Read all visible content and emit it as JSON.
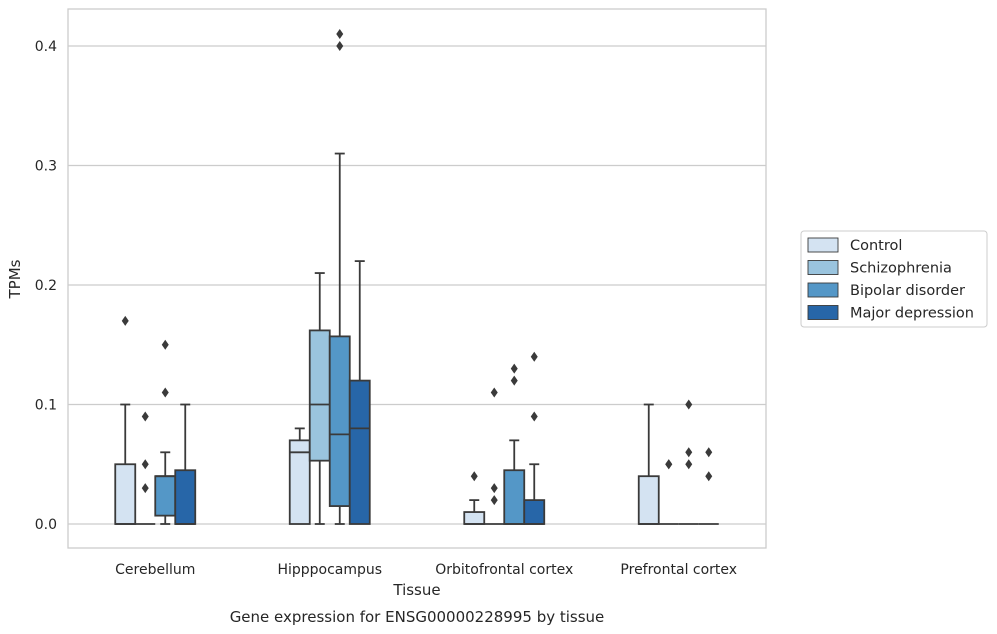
{
  "figure": {
    "caption": "Gene expression for ENSG00000228995 by tissue"
  },
  "chart_data": {
    "type": "boxplot",
    "xlabel": "Tissue",
    "ylabel": "TPMs",
    "ylim": [
      -0.02,
      0.43
    ],
    "yticks": [
      0.0,
      0.1,
      0.2,
      0.3,
      0.4
    ],
    "ytick_labels": [
      "0.0",
      "0.1",
      "0.2",
      "0.3",
      "0.4"
    ],
    "grid": "horizontal",
    "legend_position": "right",
    "categories": [
      "Cerebellum",
      "Hipppocampus",
      "Orbitofrontal cortex",
      "Prefrontal cortex"
    ],
    "series": [
      {
        "name": "Control",
        "color": "#d4e3f2",
        "boxes": [
          {
            "q1": 0.0,
            "median": 0.0,
            "q3": 0.05,
            "whisker_low": 0.0,
            "whisker_high": 0.1,
            "outliers": [
              0.17
            ]
          },
          {
            "q1": 0.0,
            "median": 0.06,
            "q3": 0.07,
            "whisker_low": 0.0,
            "whisker_high": 0.08,
            "outliers": []
          },
          {
            "q1": 0.0,
            "median": 0.0,
            "q3": 0.01,
            "whisker_low": 0.0,
            "whisker_high": 0.02,
            "outliers": [
              0.04
            ]
          },
          {
            "q1": 0.0,
            "median": 0.0,
            "q3": 0.04,
            "whisker_low": 0.0,
            "whisker_high": 0.1,
            "outliers": []
          }
        ]
      },
      {
        "name": "Schizophrenia",
        "color": "#9ac4de",
        "boxes": [
          {
            "q1": 0.0,
            "median": 0.0,
            "q3": 0.0,
            "whisker_low": 0.0,
            "whisker_high": 0.0,
            "outliers": [
              0.03,
              0.05,
              0.09
            ]
          },
          {
            "q1": 0.053,
            "median": 0.1,
            "q3": 0.162,
            "whisker_low": 0.0,
            "whisker_high": 0.21,
            "outliers": []
          },
          {
            "q1": 0.0,
            "median": 0.0,
            "q3": 0.0,
            "whisker_low": 0.0,
            "whisker_high": 0.0,
            "outliers": [
              0.02,
              0.03,
              0.11
            ]
          },
          {
            "q1": 0.0,
            "median": 0.0,
            "q3": 0.0,
            "whisker_low": 0.0,
            "whisker_high": 0.0,
            "outliers": [
              0.05,
              0.05
            ]
          }
        ]
      },
      {
        "name": "Bipolar disorder",
        "color": "#5497c7",
        "boxes": [
          {
            "q1": 0.007,
            "median": 0.04,
            "q3": 0.04,
            "whisker_low": 0.0,
            "whisker_high": 0.06,
            "outliers": [
              0.11,
              0.15
            ]
          },
          {
            "q1": 0.015,
            "median": 0.075,
            "q3": 0.157,
            "whisker_low": 0.0,
            "whisker_high": 0.31,
            "outliers": [
              0.4,
              0.41
            ]
          },
          {
            "q1": 0.0,
            "median": 0.0,
            "q3": 0.045,
            "whisker_low": 0.0,
            "whisker_high": 0.07,
            "outliers": [
              0.12,
              0.13
            ]
          },
          {
            "q1": 0.0,
            "median": 0.0,
            "q3": 0.0,
            "whisker_low": 0.0,
            "whisker_high": 0.0,
            "outliers": [
              0.05,
              0.06,
              0.1
            ]
          }
        ]
      },
      {
        "name": "Major depression",
        "color": "#2766a8",
        "boxes": [
          {
            "q1": 0.0,
            "median": 0.0,
            "q3": 0.045,
            "whisker_low": 0.0,
            "whisker_high": 0.1,
            "outliers": []
          },
          {
            "q1": 0.0,
            "median": 0.08,
            "q3": 0.12,
            "whisker_low": 0.0,
            "whisker_high": 0.22,
            "outliers": []
          },
          {
            "q1": 0.0,
            "median": 0.0,
            "q3": 0.02,
            "whisker_low": 0.0,
            "whisker_high": 0.05,
            "outliers": [
              0.09,
              0.14
            ]
          },
          {
            "q1": 0.0,
            "median": 0.0,
            "q3": 0.0,
            "whisker_low": 0.0,
            "whisker_high": 0.0,
            "outliers": [
              0.04,
              0.06
            ]
          }
        ]
      }
    ]
  }
}
